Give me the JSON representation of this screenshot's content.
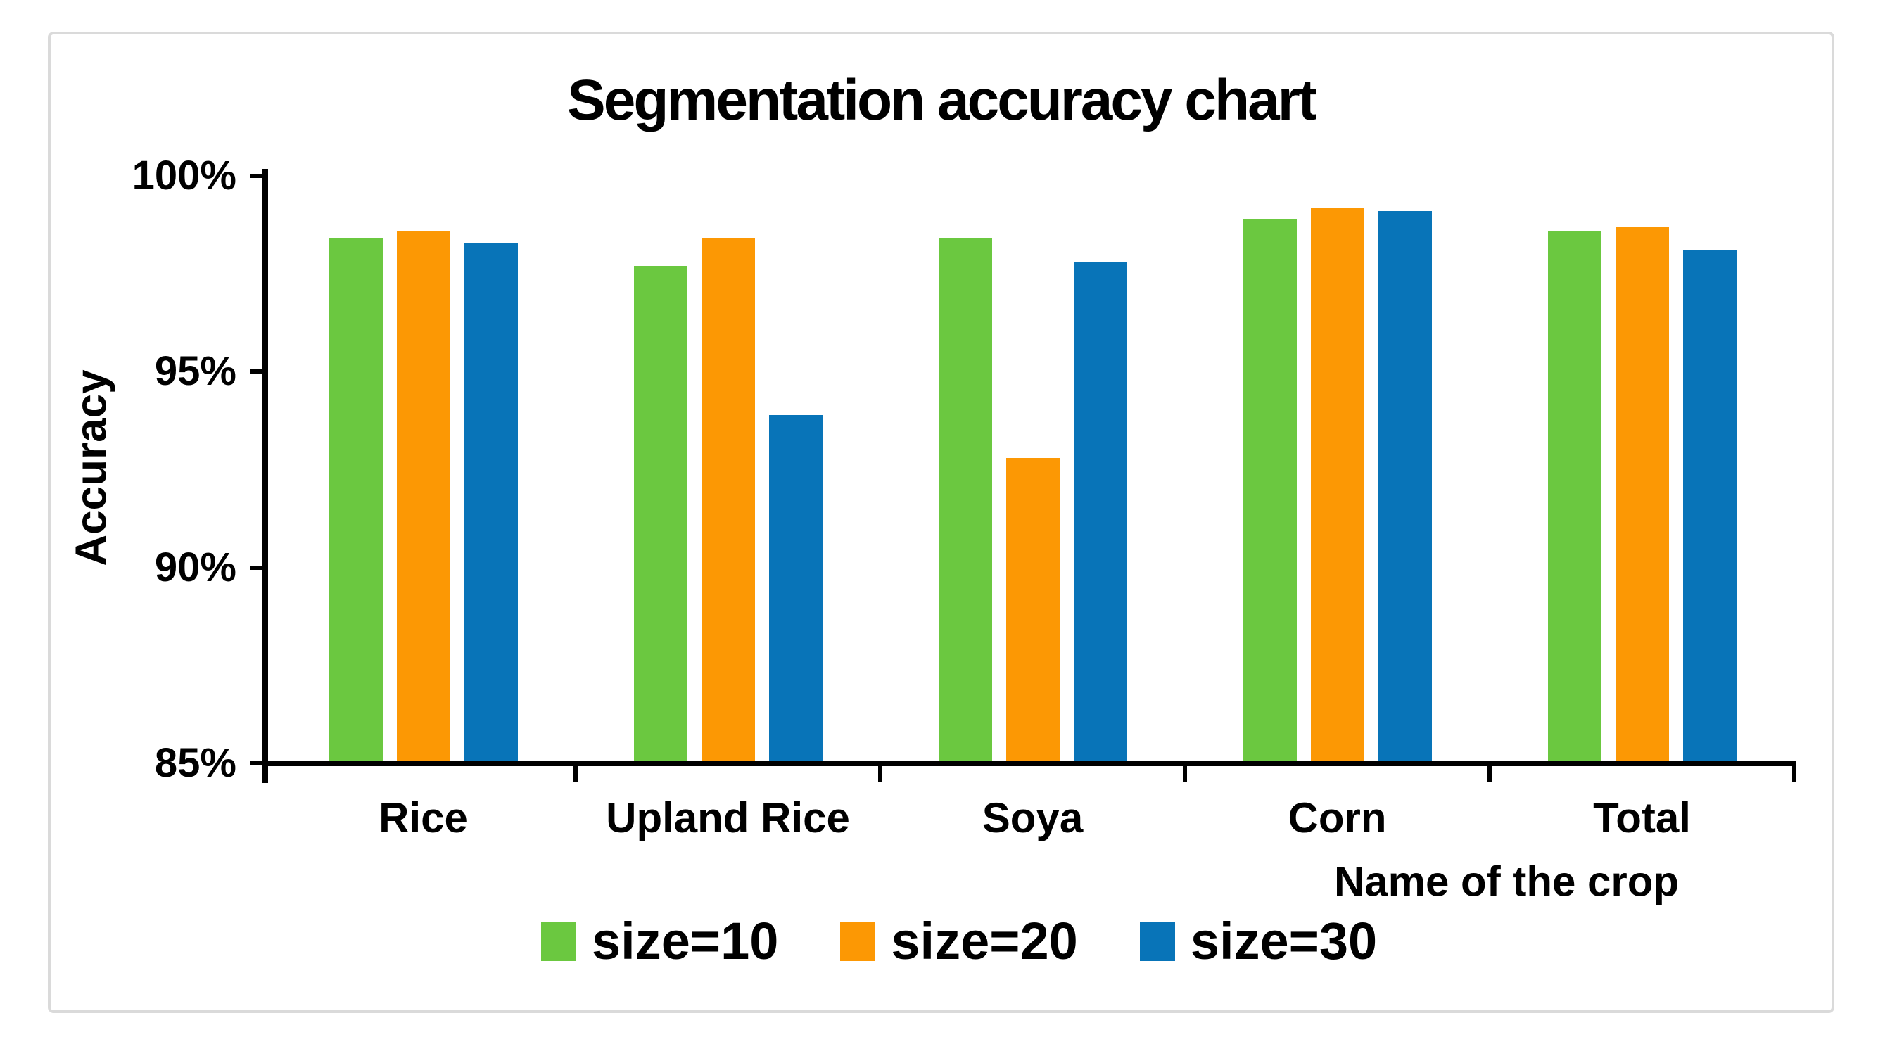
{
  "chart_data": {
    "type": "bar",
    "title": "Segmentation accuracy chart",
    "xlabel": "Name of the crop",
    "ylabel": "Accuracy",
    "categories": [
      "Rice",
      "Upland Rice",
      "Soya",
      "Corn",
      "Total"
    ],
    "series": [
      {
        "name": "size=10",
        "color": "#6BC840",
        "values": [
          98.4,
          97.7,
          98.4,
          98.9,
          98.6
        ]
      },
      {
        "name": "size=20",
        "color": "#FC9804",
        "values": [
          98.6,
          98.4,
          92.8,
          99.2,
          98.7
        ]
      },
      {
        "name": "size=30",
        "color": "#0874B8",
        "values": [
          98.3,
          93.9,
          97.8,
          99.1,
          98.1
        ]
      }
    ],
    "ylim": [
      85,
      100
    ],
    "yticks": [
      {
        "value": 100,
        "label": "100%"
      },
      {
        "value": 95,
        "label": "95%"
      },
      {
        "value": 90,
        "label": "90%"
      },
      {
        "value": 85,
        "label": "85%"
      }
    ],
    "grid": false,
    "legend_position": "bottom"
  },
  "colors": {
    "axis": "#000000",
    "text": "#000000",
    "panel_border": "#DADADA",
    "background": "#FFFFFF"
  }
}
